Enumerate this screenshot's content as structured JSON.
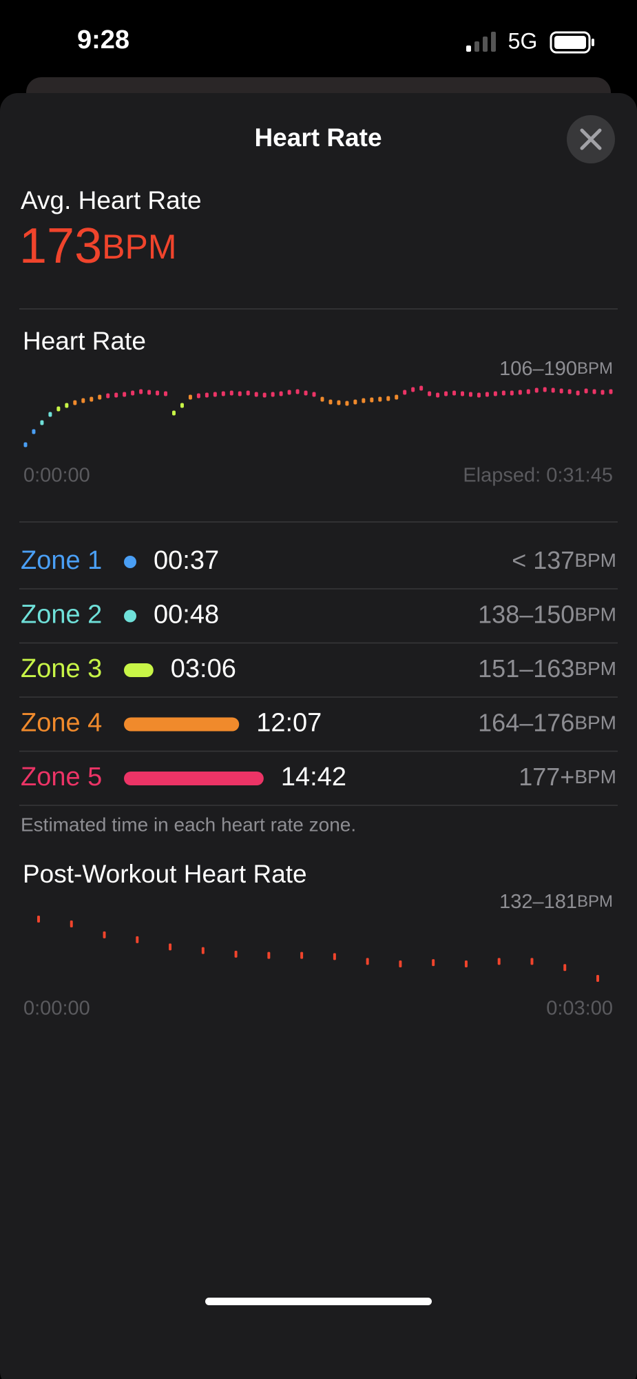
{
  "status_bar": {
    "time": "9:28",
    "network": "5G"
  },
  "header": {
    "title": "Heart Rate"
  },
  "unit": "BPM",
  "average": {
    "label": "Avg. Heart Rate",
    "value": 173
  },
  "heart_rate_chart": {
    "type": "scatter",
    "title": "Heart Rate",
    "range_label": "106–190",
    "ylim": [
      106,
      190
    ],
    "start_label": "0:00:00",
    "end_label": "Elapsed: 0:31:45",
    "values": [
      106,
      125,
      138,
      150,
      158,
      163,
      167,
      170,
      172,
      175,
      177,
      178,
      179,
      181,
      183,
      182,
      181,
      180,
      152,
      163,
      175,
      177,
      178,
      179,
      180,
      181,
      180,
      181,
      179,
      178,
      179,
      180,
      182,
      183,
      181,
      179,
      172,
      168,
      167,
      166,
      168,
      170,
      171,
      172,
      173,
      175,
      182,
      186,
      188,
      180,
      178,
      180,
      181,
      180,
      179,
      178,
      179,
      180,
      181,
      181,
      182,
      183,
      185,
      186,
      185,
      184,
      183,
      181,
      184,
      183,
      182,
      183
    ]
  },
  "zones": [
    {
      "name": "Zone 1",
      "color": "#4a9ff5",
      "time": {
        "value": 37,
        "label": "00:37"
      },
      "range": {
        "value": 137,
        "label": "< 137"
      }
    },
    {
      "name": "Zone 2",
      "color": "#6fe0d9",
      "time": {
        "value": 48,
        "label": "00:48"
      },
      "range": {
        "value": 138,
        "label": "138–150"
      }
    },
    {
      "name": "Zone 3",
      "color": "#c8f547",
      "time": {
        "value": 186,
        "label": "03:06"
      },
      "range": {
        "value": 151,
        "label": "151–163"
      }
    },
    {
      "name": "Zone 4",
      "color": "#f08a2c",
      "time": {
        "value": 727,
        "label": "12:07"
      },
      "range": {
        "value": 164,
        "label": "164–176"
      }
    },
    {
      "name": "Zone 5",
      "color": "#ec3466",
      "time": {
        "value": 882,
        "label": "14:42"
      },
      "range": {
        "value": 177,
        "label": "177+"
      }
    }
  ],
  "zones_note": "Estimated time in each heart rate zone.",
  "post_workout_chart": {
    "type": "scatter",
    "title": "Post-Workout Heart Rate",
    "range_label": "132–181",
    "ylim": [
      132,
      181
    ],
    "color": "#f0442c",
    "start_label": "0:00:00",
    "end_label": "0:03:00",
    "values": [
      181,
      177,
      168,
      164,
      158,
      155,
      152,
      151,
      151,
      150,
      146,
      144,
      145,
      144,
      146,
      146,
      141,
      132
    ]
  }
}
